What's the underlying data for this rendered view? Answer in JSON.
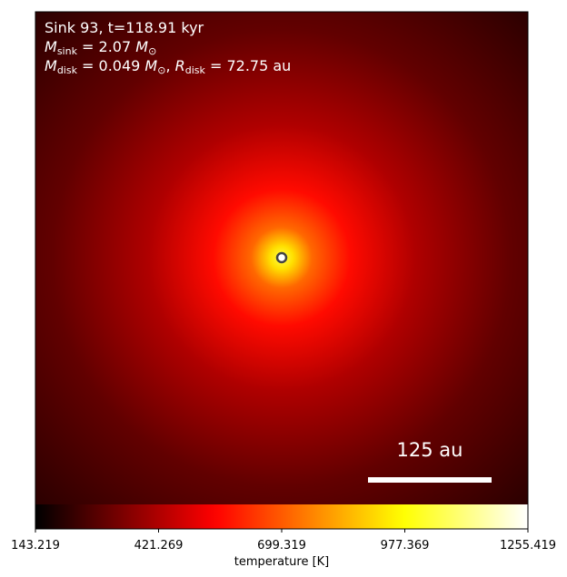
{
  "chart_data": {
    "type": "image",
    "annotation_lines": [
      [
        {
          "text": "Sink 93, t=118.91 kyr",
          "style": "normal"
        }
      ],
      [
        {
          "text": "M",
          "style": "italic"
        },
        {
          "text": "sink",
          "style": "sub"
        },
        {
          "text": " = 2.07 ",
          "style": "normal"
        },
        {
          "text": "M",
          "style": "italic"
        },
        {
          "text": "⊙",
          "style": "sub"
        }
      ],
      [
        {
          "text": "M",
          "style": "italic"
        },
        {
          "text": "disk",
          "style": "sub"
        },
        {
          "text": " = 0.049 ",
          "style": "normal"
        },
        {
          "text": "M",
          "style": "italic"
        },
        {
          "text": "⊙",
          "style": "sub"
        },
        {
          "text": ", ",
          "style": "normal"
        },
        {
          "text": "R",
          "style": "italic"
        },
        {
          "text": "disk",
          "style": "sub"
        },
        {
          "text": " = 72.75 au",
          "style": "normal"
        }
      ]
    ],
    "colormap": "hot",
    "colorbar": {
      "label": "temperature [K]",
      "clim": [
        143.219,
        1255.419
      ],
      "cticks": [
        143.219,
        421.269,
        699.319,
        977.369,
        1255.419
      ]
    },
    "scale_bar_label": "125 au"
  }
}
